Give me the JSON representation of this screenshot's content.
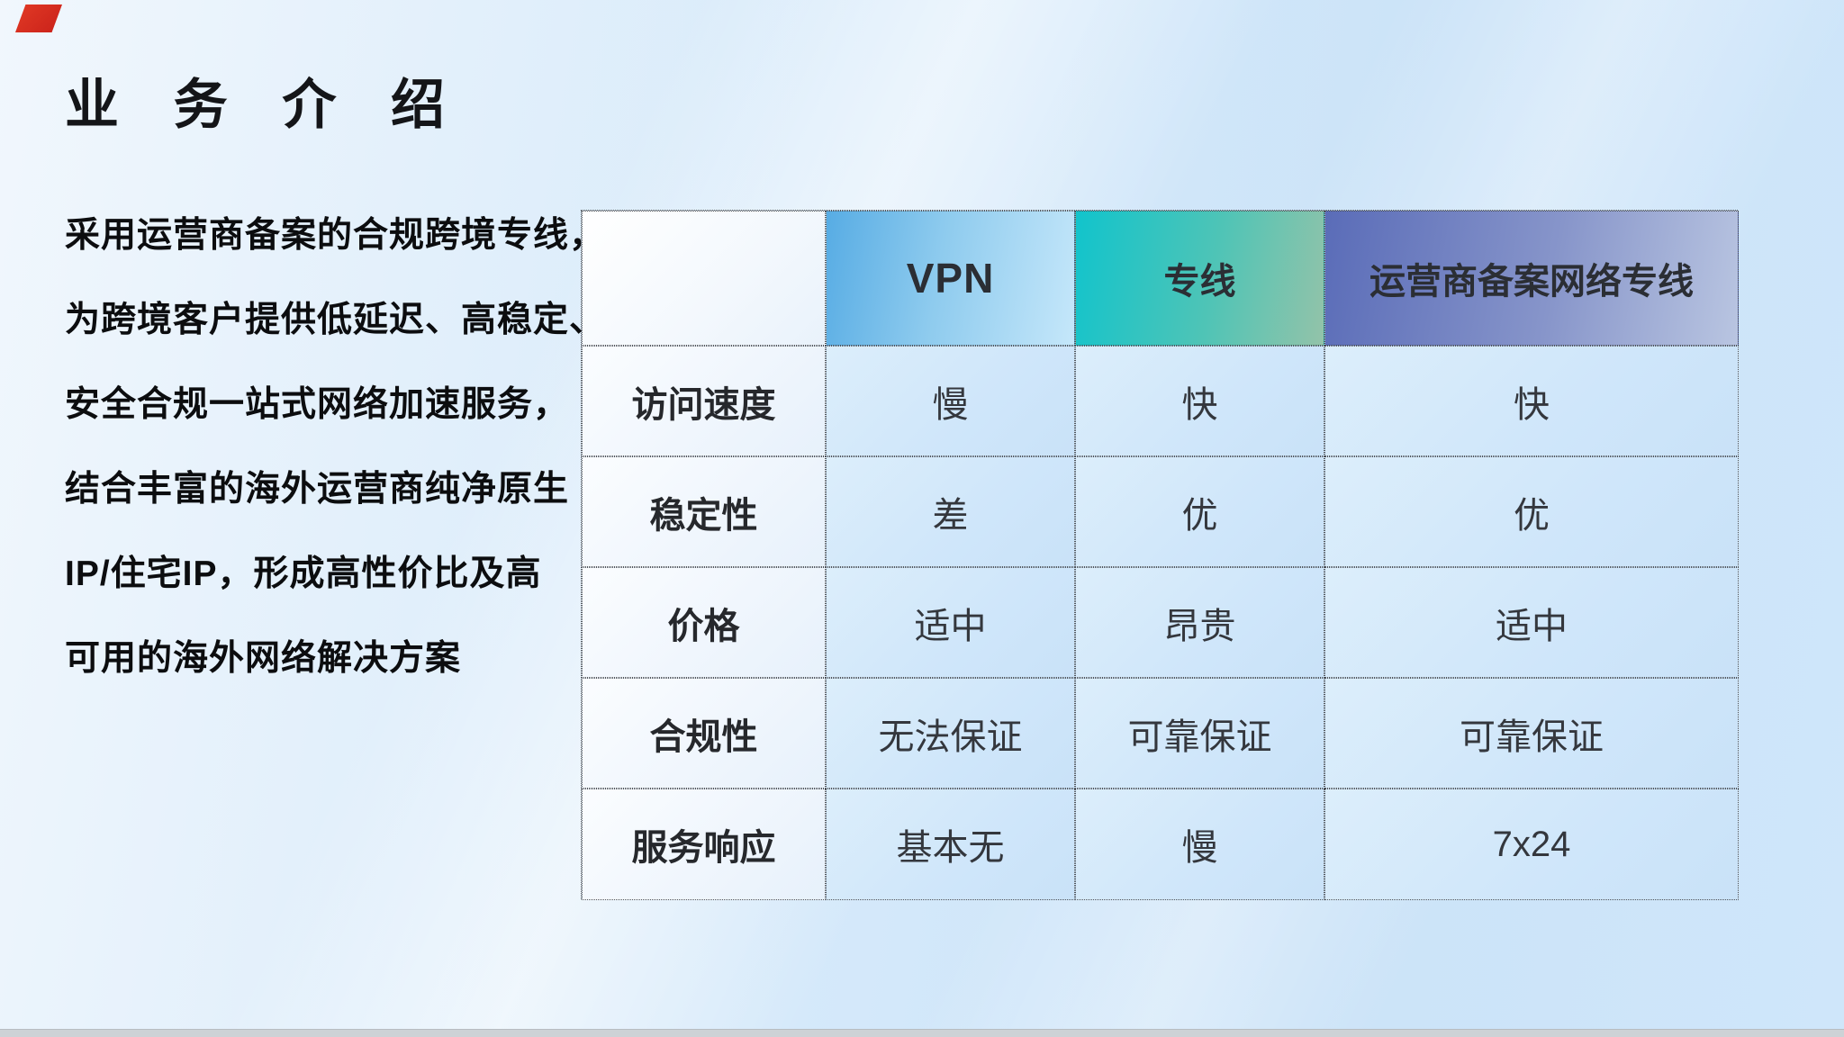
{
  "slide": {
    "title": "业 务 介 绍",
    "description_lines": [
      "采用运营商备案的合规跨境专线，",
      "为跨境客户提供低延迟、高稳定、",
      "安全合规一站式网络加速服务，",
      "结合丰富的海外运营商纯净原生",
      "IP/住宅IP，形成高性价比及高",
      "可用的海外网络解决方案"
    ],
    "decoration": {
      "corner_flag_color": "#d42a1f",
      "bottom_bar_color": "#cdd2d6",
      "background_base_color": "#d5e9fa"
    }
  },
  "table": {
    "columns": [
      "",
      "VPN",
      "专线",
      "运营商备案网络专线"
    ],
    "header_colors": {
      "vpn_gradient": [
        "#57ace4",
        "#c5e7fa"
      ],
      "dedicated_line_gradient": [
        "#11c4cc",
        "#93c3a9"
      ],
      "carrier_gradient": [
        "#5a6cb8",
        "#b9c5e1"
      ]
    },
    "rows": [
      {
        "label": "访问速度",
        "values": [
          "慢",
          "快",
          "快"
        ]
      },
      {
        "label": "稳定性",
        "values": [
          "差",
          "优",
          "优"
        ]
      },
      {
        "label": "价格",
        "values": [
          "适中",
          "昂贵",
          "适中"
        ]
      },
      {
        "label": "合规性",
        "values": [
          "无法保证",
          "可靠保证",
          "可靠保证"
        ]
      },
      {
        "label": "服务响应",
        "values": [
          "基本无",
          "慢",
          "7x24"
        ]
      }
    ]
  }
}
